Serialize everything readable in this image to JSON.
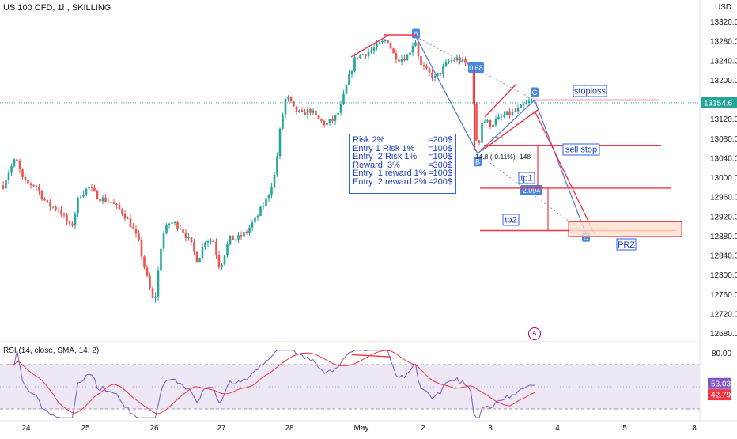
{
  "header": {
    "symbol_line": "US 100 CFD, 1h, SKILLING",
    "currency": "USD"
  },
  "colors": {
    "up": "#26a69a",
    "down": "#ef5350",
    "line_red": "#f23645",
    "blue_line": "#5b7bd5",
    "dotted": "#7b93d9",
    "rsi_line": "#7e57c2",
    "rsi_sma": "#f23645",
    "rsi_band": "#ede7f6",
    "price_tag": "#26a69a",
    "accent_blue": "#2962ff",
    "label_bg": "#4a87e0"
  },
  "chart_data": {
    "type": "candlestick",
    "symbol": "US 100 CFD",
    "timeframe": "1h",
    "x_ticks": [
      "24",
      "25",
      "26",
      "27",
      "28",
      "May",
      "2",
      "3",
      "4",
      "5",
      "8"
    ],
    "y_ticks": [
      13320.0,
      13280.0,
      13240.0,
      13200.0,
      13160.0,
      13120.0,
      13080.0,
      13040.0,
      13000.0,
      12960.0,
      12920.0,
      12880.0,
      12840.0,
      12800.0,
      12760.0,
      12720.0,
      12680.0
    ],
    "ylim": [
      12670,
      13340
    ],
    "last_price": "13154.6",
    "swing_points": [
      {
        "label": "A",
        "value": 13290
      },
      {
        "label": "B",
        "value": 13050
      },
      {
        "label": "C",
        "value": 13160
      },
      {
        "label": "D",
        "value": 12885
      }
    ],
    "fib_labels": [
      "0.68",
      "2.094"
    ],
    "measure_label": "-14.8 (-0.11%) -148",
    "levels": [
      {
        "label": "stoploss",
        "value": 13160
      },
      {
        "label": "sell stop",
        "value": 13067
      },
      {
        "label": "tp1",
        "value": 12979
      },
      {
        "label": "tp2",
        "value": 12892
      }
    ],
    "zone": {
      "label": "PRZ",
      "from": 12880,
      "to": 12910
    },
    "notes": [
      [
        "Risk 2%",
        "=200$"
      ],
      [
        "Entry 1 Risk 1%",
        "=100$"
      ],
      [
        "Entry  2 Risk 1%",
        "=100$"
      ],
      [
        "Reward  3%",
        "=300$"
      ],
      [
        "Entry  1 reward 1%",
        "=100$"
      ],
      [
        "Entry  2 reward 2%",
        "=200$"
      ]
    ],
    "rsi": {
      "label": "RSI (14, close, SMA, 14, 2)",
      "y_ticks": [
        80.0
      ],
      "bands": [
        70,
        30
      ],
      "rsi_value": "53.03",
      "sma_value": "42.79",
      "ylim": [
        20,
        85
      ]
    }
  }
}
